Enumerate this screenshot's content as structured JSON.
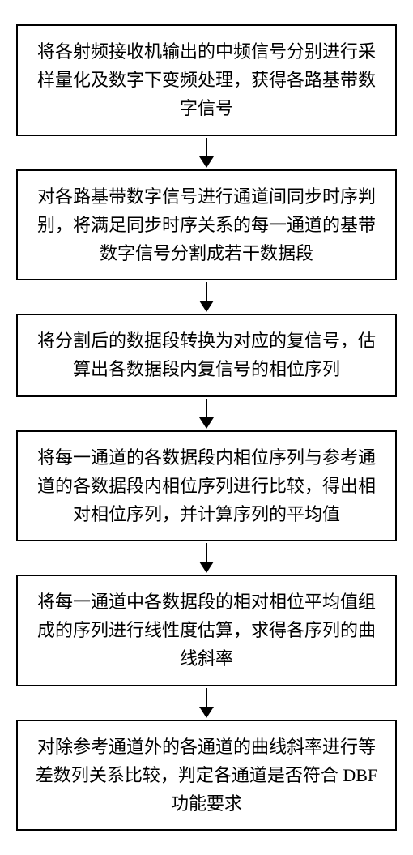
{
  "flowchart": {
    "type": "flowchart",
    "direction": "vertical",
    "box_border_color": "#000000",
    "box_border_width": 2,
    "box_background": "#ffffff",
    "text_color": "#000000",
    "font_size": 22,
    "arrow_color": "#000000",
    "steps": [
      {
        "text": "将各射频接收机输出的中频信号分别进行采样量化及数字下变频处理，获得各路基带数字信号"
      },
      {
        "text": "对各路基带数字信号进行通道间同步时序判别，将满足同步时序关系的每一通道的基带数字信号分割成若干数据段"
      },
      {
        "text": "将分割后的数据段转换为对应的复信号，估算出各数据段内复信号的相位序列"
      },
      {
        "text": "将每一通道的各数据段内相位序列与参考通道的各数据段内相位序列进行比较，得出相对相位序列，并计算序列的平均值"
      },
      {
        "text": "将每一通道中各数据段的相对相位平均值组成的序列进行线性度估算，求得各序列的曲线斜率"
      },
      {
        "text": "对除参考通道外的各通道的曲线斜率进行等差数列关系比较，判定各通道是否符合 DBF 功能要求"
      }
    ]
  }
}
